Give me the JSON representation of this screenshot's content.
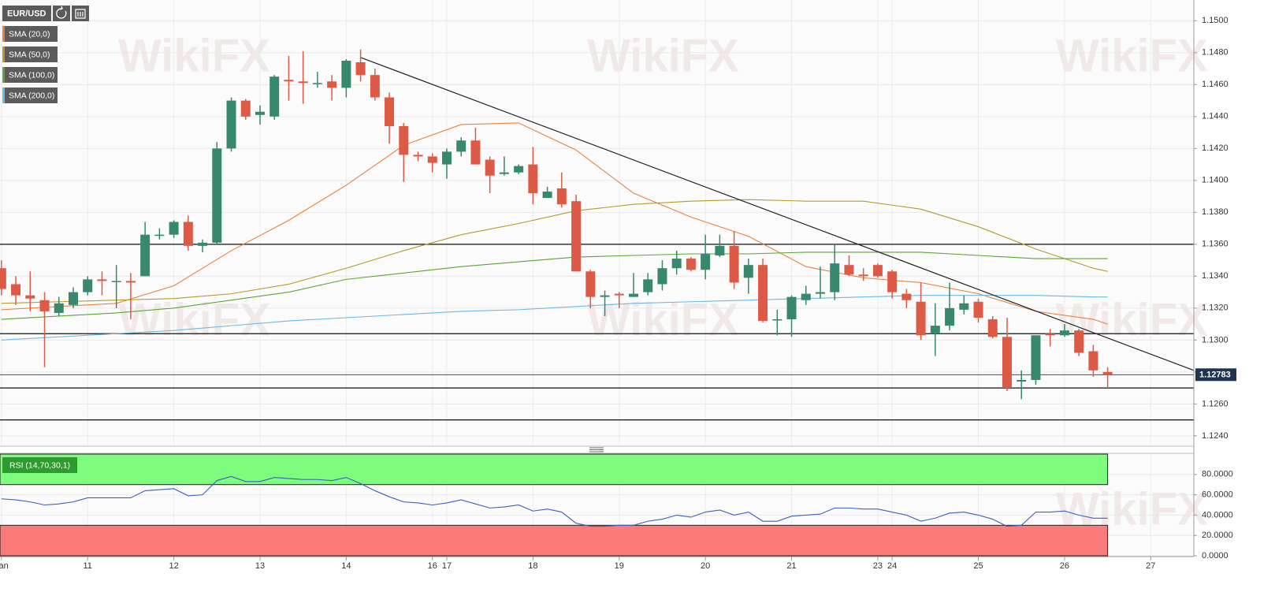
{
  "chart_data": [
    {
      "type": "candlestick",
      "symbol": "EUR/USD",
      "watermark": "WikiFX",
      "up_color": "#38876f",
      "down_color": "#dd5a47",
      "open": [
        1.1345,
        1.1335,
        1.1328,
        1.1325,
        1.1317,
        1.1322,
        1.133,
        1.1338,
        1.1337,
        1.1337,
        1.134,
        1.1366,
        1.1366,
        1.1374,
        1.1359,
        1.1361,
        1.142,
        1.145,
        1.1441,
        1.144,
        1.1463,
        1.1462,
        1.1461,
        1.1462,
        1.1458,
        1.1474,
        1.1466,
        1.1452,
        1.1434,
        1.1416,
        1.1415,
        1.141,
        1.1418,
        1.1425,
        1.1413,
        1.1404,
        1.1405,
        1.141,
        1.1389,
        1.1395,
        1.1387,
        1.1343,
        1.1327,
        1.1329,
        1.1327,
        1.133,
        1.1335,
        1.1345,
        1.1351,
        1.1344,
        1.1353,
        1.1359,
        1.1339,
        1.1347,
        1.1313,
        1.1313,
        1.1325,
        1.1329,
        1.133,
        1.1347,
        1.1341,
        1.1347,
        1.1343,
        1.1329,
        1.1324,
        1.1304,
        1.1309,
        1.1319,
        1.1324,
        1.1313,
        1.1302,
        1.1274,
        1.1275,
        1.1304,
        1.1303,
        1.1306,
        1.1293,
        1.128
      ],
      "high": [
        1.135,
        1.134,
        1.1343,
        1.133,
        1.1327,
        1.1333,
        1.134,
        1.1343,
        1.1347,
        1.1342,
        1.1374,
        1.137,
        1.1375,
        1.1378,
        1.1363,
        1.1424,
        1.1452,
        1.1451,
        1.1447,
        1.1466,
        1.1478,
        1.1481,
        1.1468,
        1.1466,
        1.1476,
        1.1482,
        1.147,
        1.1455,
        1.1436,
        1.1418,
        1.1417,
        1.142,
        1.1427,
        1.1433,
        1.1415,
        1.1415,
        1.141,
        1.1421,
        1.1396,
        1.1405,
        1.1391,
        1.1344,
        1.1331,
        1.133,
        1.1342,
        1.1342,
        1.135,
        1.1356,
        1.1352,
        1.1366,
        1.1366,
        1.1368,
        1.1351,
        1.1351,
        1.1319,
        1.1328,
        1.1334,
        1.1346,
        1.136,
        1.1353,
        1.1345,
        1.1348,
        1.1344,
        1.1332,
        1.1336,
        1.1323,
        1.1336,
        1.1328,
        1.1326,
        1.1315,
        1.1314,
        1.1281,
        1.1303,
        1.1307,
        1.131,
        1.1307,
        1.1297,
        1.1283
      ],
      "low": [
        1.1328,
        1.1322,
        1.1318,
        1.1283,
        1.1315,
        1.132,
        1.1328,
        1.1328,
        1.132,
        1.1313,
        1.134,
        1.1363,
        1.1364,
        1.1356,
        1.1355,
        1.136,
        1.1418,
        1.1438,
        1.1435,
        1.1438,
        1.145,
        1.1448,
        1.1458,
        1.145,
        1.1452,
        1.1462,
        1.145,
        1.1423,
        1.1399,
        1.1412,
        1.1405,
        1.1401,
        1.1415,
        1.141,
        1.1392,
        1.1403,
        1.1404,
        1.1385,
        1.1389,
        1.1383,
        1.1343,
        1.132,
        1.1315,
        1.132,
        1.1327,
        1.1328,
        1.1331,
        1.1341,
        1.1343,
        1.1338,
        1.1352,
        1.1332,
        1.1329,
        1.1311,
        1.1303,
        1.1302,
        1.1322,
        1.1326,
        1.1325,
        1.134,
        1.1337,
        1.1339,
        1.1326,
        1.132,
        1.13,
        1.129,
        1.1306,
        1.1316,
        1.1311,
        1.1301,
        1.1268,
        1.1263,
        1.1272,
        1.1296,
        1.1302,
        1.129,
        1.1277,
        1.127
      ],
      "close": [
        1.1332,
        1.1328,
        1.1326,
        1.1318,
        1.1323,
        1.133,
        1.1338,
        1.1337,
        1.1337,
        1.1336,
        1.1366,
        1.1366,
        1.1374,
        1.1359,
        1.1361,
        1.142,
        1.145,
        1.144,
        1.1443,
        1.1465,
        1.1462,
        1.1461,
        1.1461,
        1.1458,
        1.1475,
        1.1466,
        1.1452,
        1.1434,
        1.1416,
        1.1415,
        1.1411,
        1.1418,
        1.1425,
        1.141,
        1.1403,
        1.1405,
        1.1409,
        1.1392,
        1.1393,
        1.1385,
        1.1343,
        1.1327,
        1.1328,
        1.1328,
        1.1329,
        1.1338,
        1.1345,
        1.1351,
        1.1344,
        1.1354,
        1.1359,
        1.1336,
        1.1347,
        1.1312,
        1.1313,
        1.1327,
        1.1329,
        1.133,
        1.1348,
        1.1341,
        1.134,
        1.134,
        1.133,
        1.1325,
        1.1303,
        1.1309,
        1.132,
        1.1323,
        1.1314,
        1.1302,
        1.127,
        1.1275,
        1.1303,
        1.1303,
        1.1306,
        1.1292,
        1.1281,
        1.12783
      ],
      "overlays": [
        {
          "name": "SMA (20,0)",
          "color": "#e8823a",
          "x": [
            0,
            4,
            8,
            12,
            16,
            20,
            24,
            28,
            32,
            36,
            40,
            44,
            48,
            52,
            56,
            60,
            64,
            68,
            72,
            76,
            77
          ],
          "values": [
            1.1319,
            1.1321,
            1.1323,
            1.1334,
            1.1356,
            1.1375,
            1.1397,
            1.1422,
            1.1435,
            1.1436,
            1.1419,
            1.1392,
            1.1377,
            1.1365,
            1.1346,
            1.1339,
            1.1336,
            1.1329,
            1.1318,
            1.1313,
            1.131
          ]
        },
        {
          "name": "SMA (50,0)",
          "color": "#b59a2a",
          "x": [
            0,
            4,
            8,
            12,
            16,
            20,
            24,
            28,
            32,
            36,
            40,
            44,
            48,
            52,
            56,
            60,
            64,
            68,
            72,
            76,
            77
          ],
          "values": [
            1.1323,
            1.1324,
            1.1325,
            1.1326,
            1.1329,
            1.1335,
            1.1345,
            1.1356,
            1.1366,
            1.1373,
            1.1381,
            1.1385,
            1.1387,
            1.1388,
            1.1387,
            1.1387,
            1.1382,
            1.1371,
            1.1357,
            1.1345,
            1.1343
          ]
        },
        {
          "name": "SMA (100,0)",
          "color": "#5aa632",
          "x": [
            0,
            4,
            8,
            12,
            16,
            20,
            24,
            28,
            32,
            36,
            40,
            44,
            48,
            52,
            56,
            60,
            64,
            68,
            72,
            76,
            77
          ],
          "values": [
            1.1313,
            1.1315,
            1.1317,
            1.132,
            1.1325,
            1.133,
            1.1338,
            1.1342,
            1.1346,
            1.1349,
            1.1352,
            1.1353,
            1.1354,
            1.1354,
            1.1355,
            1.1355,
            1.1355,
            1.1353,
            1.1351,
            1.1351,
            1.1351
          ]
        },
        {
          "name": "SMA (200,0)",
          "color": "#6cb8e6",
          "x": [
            0,
            4,
            8,
            12,
            16,
            20,
            24,
            28,
            32,
            36,
            40,
            44,
            48,
            52,
            56,
            60,
            64,
            68,
            72,
            76,
            77
          ],
          "values": [
            1.13,
            1.1302,
            1.1304,
            1.1306,
            1.1309,
            1.1312,
            1.1314,
            1.1316,
            1.1318,
            1.1319,
            1.1321,
            1.1323,
            1.1324,
            1.1325,
            1.1326,
            1.1327,
            1.1328,
            1.1328,
            1.1328,
            1.1327,
            1.1327
          ]
        }
      ],
      "trendline": {
        "color": "#222222",
        "x": [
          25,
          83
        ],
        "values": [
          1.1477,
          1.1281
        ]
      },
      "hlines": [
        1.136,
        1.1304,
        1.127,
        1.125
      ],
      "last_price": 1.12783,
      "xlim": [
        -0.1,
        83
      ],
      "ylim": [
        1.1234,
        1.1513
      ],
      "yticks": [
        {
          "value": 1.124,
          "label": "1.1240"
        },
        {
          "value": 1.126,
          "label": "1.1260"
        },
        {
          "value": 1.128,
          "label": "1.1280"
        },
        {
          "value": 1.13,
          "label": "1.1300"
        },
        {
          "value": 1.132,
          "label": "1.1320"
        },
        {
          "value": 1.134,
          "label": "1.1340"
        },
        {
          "value": 1.136,
          "label": "1.1360"
        },
        {
          "value": 1.138,
          "label": "1.1380"
        },
        {
          "value": 1.14,
          "label": "1.1400"
        },
        {
          "value": 1.142,
          "label": "1.1420"
        },
        {
          "value": 1.144,
          "label": "1.1440"
        },
        {
          "value": 1.146,
          "label": "1.1460"
        },
        {
          "value": 1.148,
          "label": "1.1480"
        },
        {
          "value": 1.15,
          "label": "1.1500"
        }
      ],
      "xticks": [
        {
          "value": 0,
          "label": "Jan"
        },
        {
          "value": 6,
          "label": "11"
        },
        {
          "value": 12,
          "label": "12"
        },
        {
          "value": 18,
          "label": "13"
        },
        {
          "value": 24,
          "label": "14"
        },
        {
          "value": 30,
          "label": "16"
        },
        {
          "value": 31,
          "label": "17"
        },
        {
          "value": 37,
          "label": "18"
        },
        {
          "value": 43,
          "label": "19"
        },
        {
          "value": 49,
          "label": "20"
        },
        {
          "value": 55,
          "label": "21"
        },
        {
          "value": 61,
          "label": "23"
        },
        {
          "value": 62,
          "label": "24"
        },
        {
          "value": 68,
          "label": "25"
        },
        {
          "value": 74,
          "label": "26"
        },
        {
          "value": 80,
          "label": "27"
        }
      ],
      "grid": true
    },
    {
      "type": "line",
      "name": "RSI (14,70,30,1)",
      "color": "#3b5fc4",
      "values": [
        56,
        55,
        53,
        50,
        51,
        53,
        57,
        57,
        57,
        57,
        64,
        65,
        66,
        59,
        60,
        74,
        78,
        73,
        73,
        77,
        76,
        75,
        75,
        74,
        77,
        71,
        64,
        58,
        53,
        52,
        50,
        52,
        55,
        51,
        47,
        48,
        50,
        44,
        46,
        43,
        32,
        29,
        29,
        30,
        30,
        34,
        36,
        40,
        38,
        43,
        45,
        40,
        43,
        34,
        34,
        39,
        40,
        41,
        47,
        47,
        46,
        46,
        43,
        40,
        34,
        37,
        42,
        43,
        40,
        36,
        29,
        30,
        43,
        43,
        44,
        40,
        37,
        37
      ],
      "bands": [
        {
          "from": 70,
          "to": 100,
          "color": "#7dfc7d"
        },
        {
          "from": 0,
          "to": 30,
          "color": "#fb7b7b"
        }
      ],
      "ylim": [
        0,
        100
      ],
      "yticks": [
        {
          "value": 0,
          "label": "0.0000"
        },
        {
          "value": 20,
          "label": "20.0000"
        },
        {
          "value": 40,
          "label": "40.0000"
        },
        {
          "value": 60,
          "label": "60.0000"
        },
        {
          "value": 80,
          "label": "80.0000"
        }
      ]
    }
  ]
}
